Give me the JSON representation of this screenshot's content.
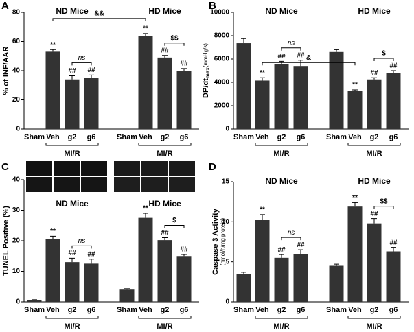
{
  "chart_data": [
    {
      "panel": "A",
      "type": "bar",
      "color": "#333333",
      "ylabel": "% of INF/AAR",
      "categories": [
        "Sham",
        "Veh",
        "g2",
        "g6",
        "Sham",
        "Veh",
        "g2",
        "g6"
      ],
      "values": [
        0,
        53,
        34,
        35,
        0,
        64,
        49,
        40
      ],
      "errors": [
        0,
        1.5,
        2.5,
        2,
        0,
        1.5,
        1.5,
        1.5
      ],
      "markers": [
        null,
        "**",
        "##",
        "##",
        null,
        "**",
        "##",
        "##"
      ],
      "group_labels": [
        "ND Mice",
        "HD Mice"
      ],
      "bracket_label": "MI/R",
      "comparisons": {
        "nd_g2_vs_g6": "ns",
        "hd_g2_vs_g6": "$$",
        "nd_veh_vs_hd_veh": "&&"
      },
      "ylim": [
        0,
        80
      ],
      "yticks": [
        0,
        20,
        40,
        60,
        80
      ]
    },
    {
      "panel": "B",
      "type": "bar",
      "color": "#333333",
      "ylabel": "DP/dt",
      "ylabel_sub": "max",
      "ylabel_unit": "(mmHg/s)",
      "categories": [
        "Sham",
        "Veh",
        "g2",
        "g6",
        "Sham",
        "Veh",
        "g2",
        "g6"
      ],
      "values": [
        7350,
        4150,
        5550,
        5400,
        6600,
        3250,
        4250,
        4800
      ],
      "errors": [
        400,
        250,
        250,
        500,
        200,
        100,
        150,
        200
      ],
      "markers": [
        null,
        "**",
        "##",
        "##",
        null,
        "**",
        "##",
        "##"
      ],
      "group_labels": [
        "ND Mice",
        "HD Mice"
      ],
      "bracket_label": "MI/R",
      "comparisons": {
        "nd_g2_vs_g6": "ns",
        "hd_g2_vs_g6": "$",
        "nd_veh_vs_hd_veh": "&"
      },
      "ylim": [
        0,
        10000
      ],
      "yticks": [
        0,
        2000,
        4000,
        6000,
        8000,
        10000
      ]
    },
    {
      "panel": "C",
      "type": "bar",
      "color": "#333333",
      "ylabel": "TUNEL Positive (%)",
      "categories": [
        "Sham",
        "Veh",
        "g2",
        "g6",
        "Sham",
        "Veh",
        "g2",
        "g6"
      ],
      "values": [
        0.5,
        20.5,
        13,
        12.5,
        4,
        27.5,
        20.2,
        15
      ],
      "errors": [
        0.2,
        1,
        1.3,
        1.5,
        0.3,
        1.5,
        0.8,
        0.5
      ],
      "markers": [
        null,
        "**",
        "##",
        "##",
        null,
        "**",
        "##",
        "##"
      ],
      "group_labels": [
        "ND Mice",
        "HD Mice"
      ],
      "bracket_label": "MI/R",
      "comparisons": {
        "nd_g2_vs_g6": "ns",
        "hd_g2_vs_g6": "$"
      },
      "ylim": [
        0,
        40
      ],
      "yticks": [
        0,
        10,
        20,
        30,
        40
      ]
    },
    {
      "panel": "D",
      "type": "bar",
      "color": "#333333",
      "ylabel": "Caspase 3 Activity",
      "ylabel_unit": "(nmol/h/mg protein)",
      "categories": [
        "Sham",
        "Veh",
        "g2",
        "g6",
        "Sham",
        "Veh",
        "g2",
        "g6"
      ],
      "values": [
        3.5,
        10.2,
        5.5,
        6,
        4.5,
        11.9,
        9.8,
        6.3
      ],
      "errors": [
        0.2,
        0.7,
        0.4,
        0.5,
        0.2,
        0.5,
        0.6,
        0.5
      ],
      "markers": [
        null,
        "**",
        "##",
        "##",
        null,
        "**",
        "##",
        "##"
      ],
      "group_labels": [
        "ND Mice",
        "HD Mice"
      ],
      "bracket_label": "MI/R",
      "comparisons": {
        "nd_g2_vs_g6": "ns",
        "hd_g2_vs_g6": "$$"
      },
      "ylim": [
        0,
        15
      ],
      "yticks": [
        0,
        5,
        10,
        15
      ]
    }
  ]
}
